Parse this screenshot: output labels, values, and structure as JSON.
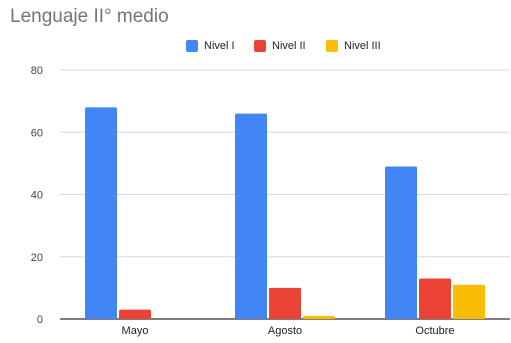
{
  "chart_data": {
    "type": "bar",
    "title": "Lenguaje II° medio",
    "xlabel": "",
    "ylabel": "",
    "categories": [
      "Mayo",
      "Agosto",
      "Octubre"
    ],
    "series": [
      {
        "name": "Nivel I",
        "color": "#4285F4",
        "values": [
          68,
          66,
          49
        ]
      },
      {
        "name": "Nivel II",
        "color": "#EA4335",
        "values": [
          3,
          10,
          13
        ]
      },
      {
        "name": "Nivel III",
        "color": "#FBBC04",
        "values": [
          0,
          1,
          11
        ]
      }
    ],
    "ylim": [
      0,
      80
    ],
    "yticks": [
      "0",
      "20",
      "40",
      "60",
      "80"
    ],
    "grid": true,
    "legend_position": "top-center"
  }
}
